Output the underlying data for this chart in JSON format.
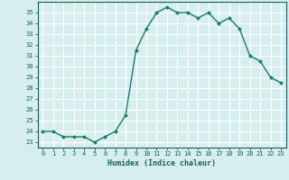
{
  "x": [
    0,
    1,
    2,
    3,
    4,
    5,
    6,
    7,
    8,
    9,
    10,
    11,
    12,
    13,
    14,
    15,
    16,
    17,
    18,
    19,
    20,
    21,
    22,
    23
  ],
  "y": [
    24,
    24,
    23.5,
    23.5,
    23.5,
    23,
    23.5,
    24,
    25.5,
    31.5,
    33.5,
    35,
    35.5,
    35,
    35,
    34.5,
    35,
    34,
    34.5,
    33.5,
    31,
    30.5,
    29,
    28.5
  ],
  "line_color": "#1a7a6e",
  "marker_color": "#1a7a6e",
  "bg_color": "#d6eeee",
  "grid_color": "#ffffff",
  "xlabel": "Humidex (Indice chaleur)",
  "ylabel_ticks": [
    23,
    24,
    25,
    26,
    27,
    28,
    29,
    30,
    31,
    32,
    33,
    34,
    35
  ],
  "ylim": [
    22.5,
    36
  ],
  "xlim": [
    -0.5,
    23.5
  ],
  "tick_color": "#1a5f5a",
  "label_color": "#1a5f5a"
}
